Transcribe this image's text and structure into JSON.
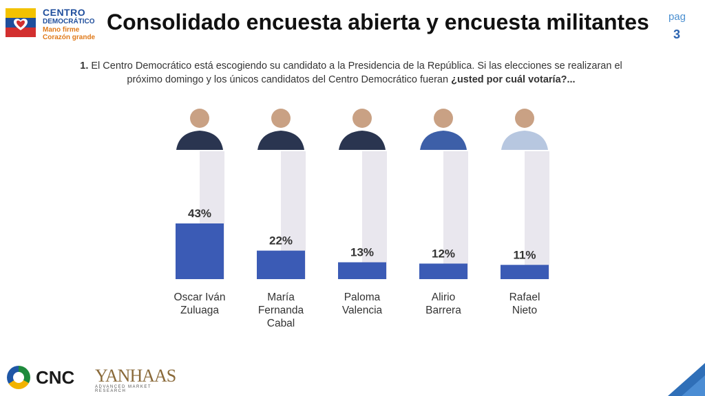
{
  "header": {
    "logo_line1": "CENTRO",
    "logo_line2": "DEMOCRÁTICO",
    "logo_line3": "Mano firme",
    "logo_line4": "Corazón grande",
    "title": "Consolidado encuesta abierta y encuesta militantes",
    "page_label": "pag",
    "page_number": "3"
  },
  "question": {
    "number": "1.",
    "text": " El Centro Democrático está escogiendo su candidato a la  Presidencia de la República. Si las elecciones se realizaran el próximo domingo y los únicos candidatos del Centro Democrático fueran ",
    "emphasis": "¿usted por cuál votaría?..."
  },
  "footer": {
    "cnc": "CNC",
    "yanhaas": "YANHAAS",
    "yanhaas_sub": "ADVANCED MARKET RESEARCH"
  },
  "colors": {
    "bar": "#3b5bb5",
    "track": "#e9e7ee",
    "accent": "#2a63b0"
  },
  "chart_data": {
    "type": "bar",
    "categories": [
      "Oscar Iván\nZuluaga",
      "María\nFernanda\nCabal",
      "Paloma\nValencia",
      "Alirio\nBarrera",
      "Rafael\nNieto"
    ],
    "values": [
      43,
      22,
      13,
      12,
      11
    ],
    "value_labels": [
      "43%",
      "22%",
      "13%",
      "12%",
      "11%"
    ],
    "title": "",
    "xlabel": "",
    "ylabel": "",
    "ylim": [
      0,
      100
    ],
    "grid": false,
    "legend": "none"
  }
}
